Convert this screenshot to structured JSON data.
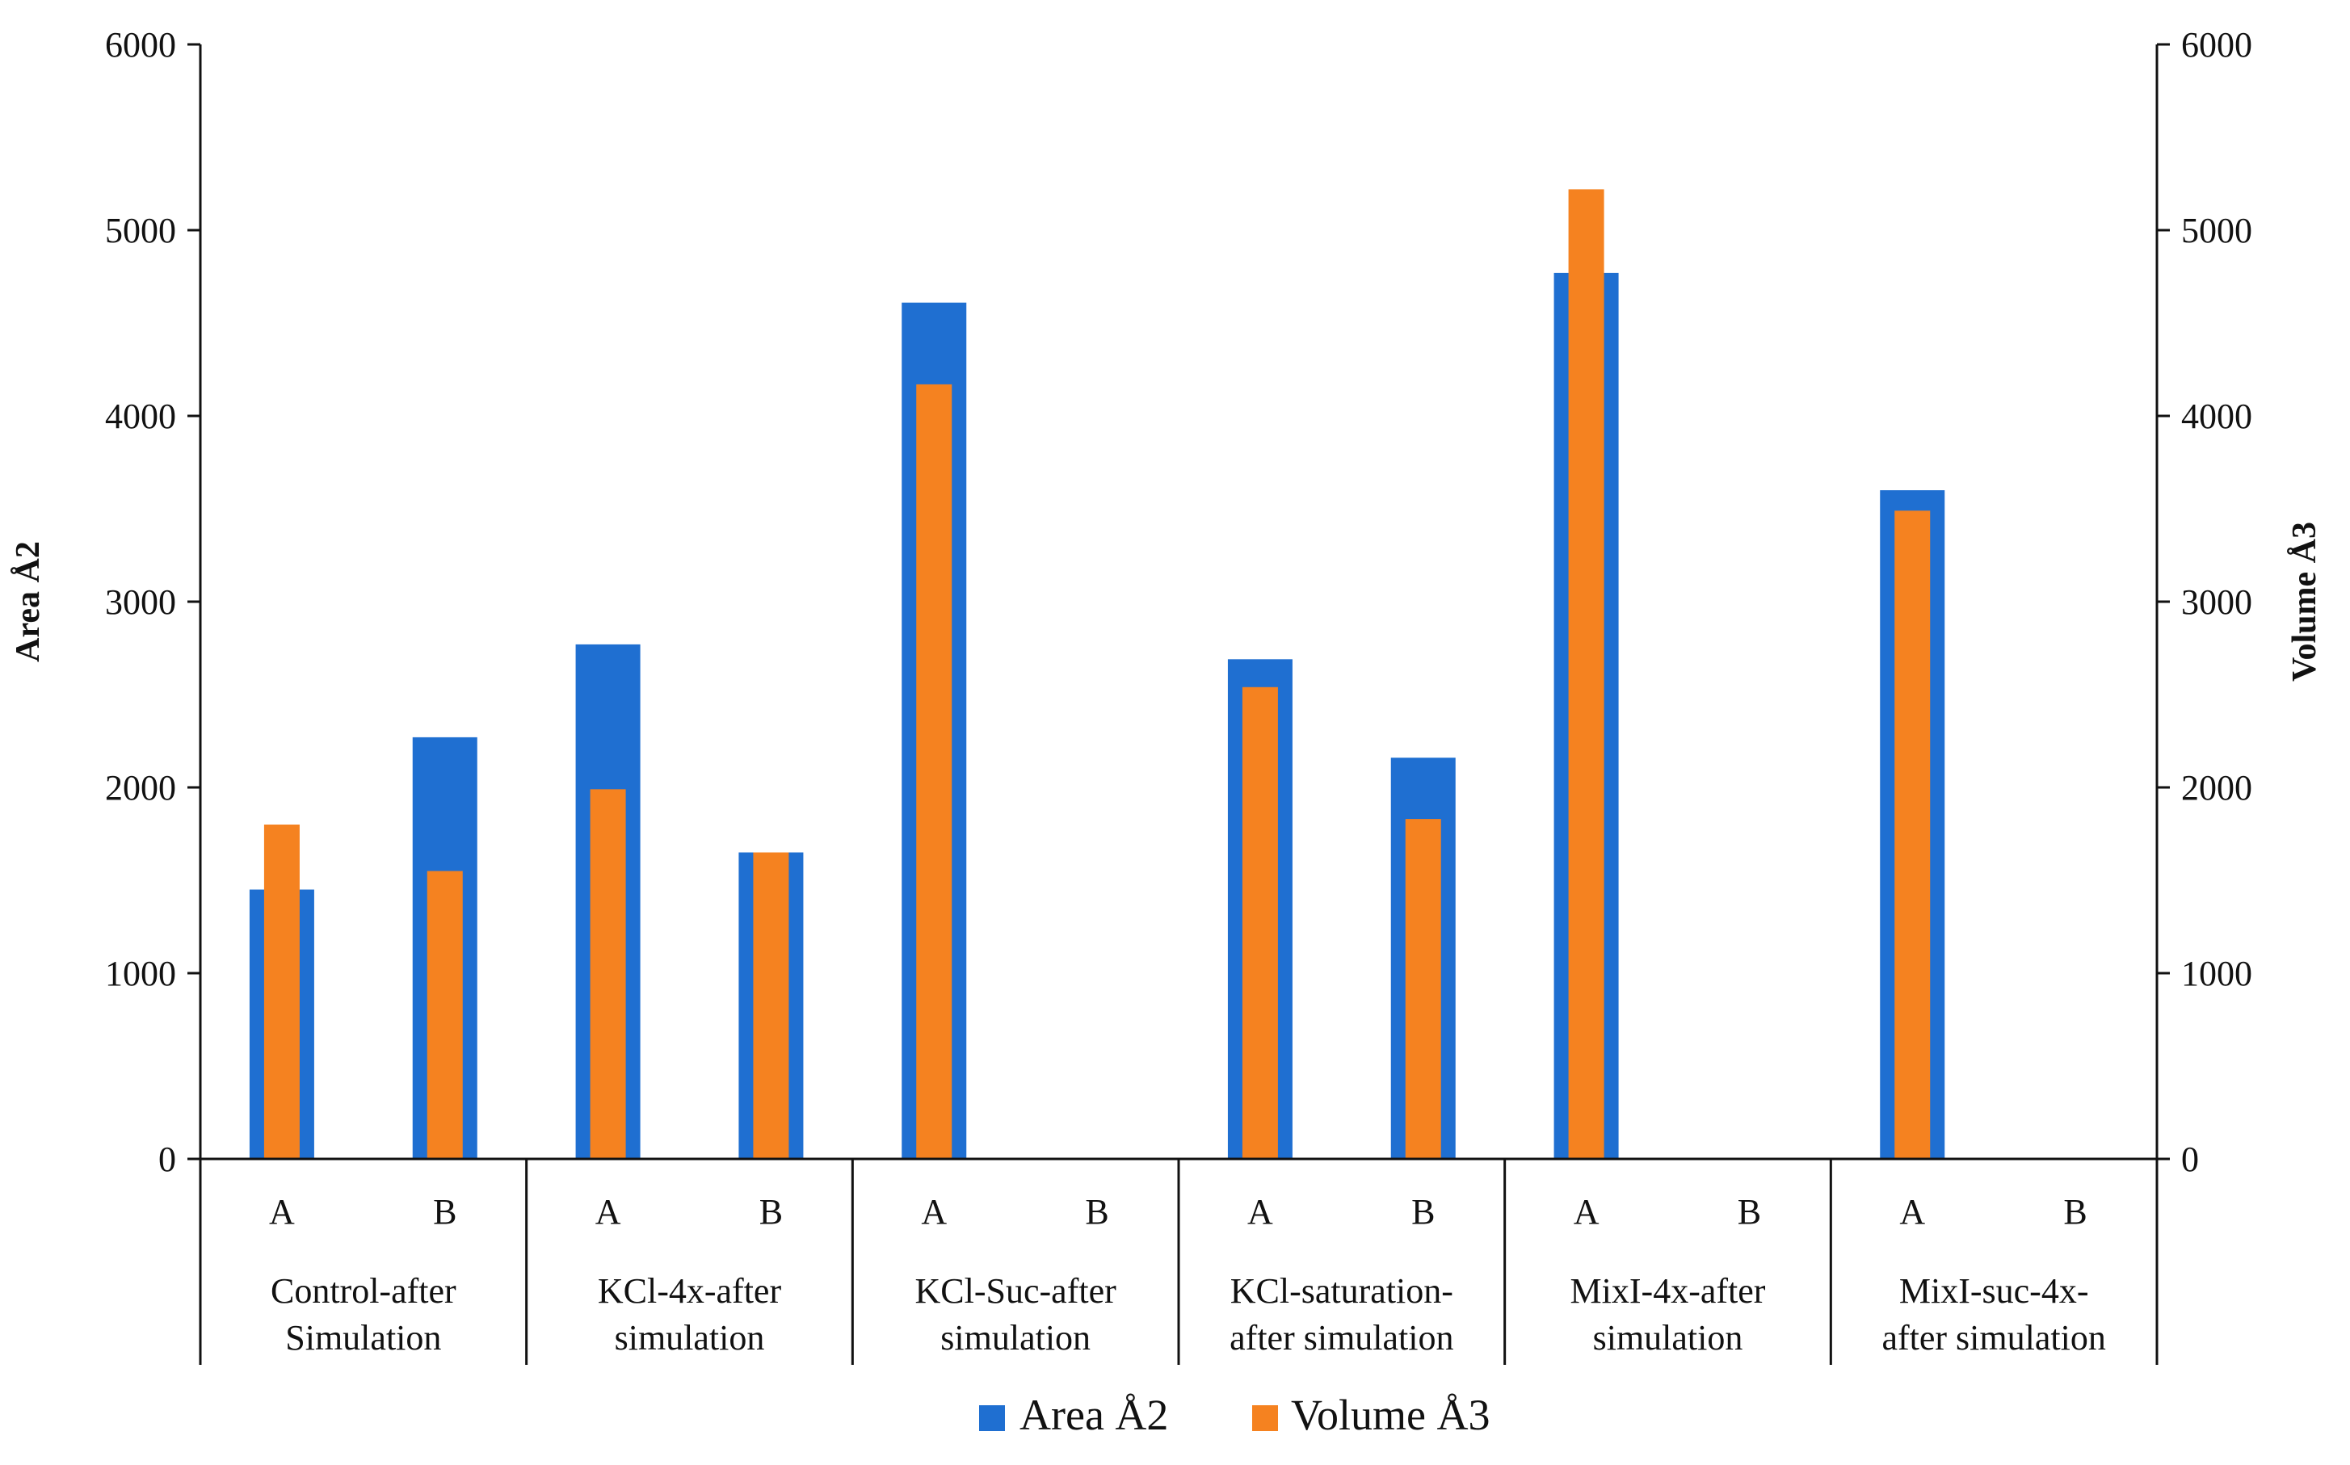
{
  "chart_data": {
    "type": "bar",
    "title": "",
    "ylabel_left": "Area Å2",
    "ylabel_right": "Volume Å3",
    "ylim_left": [
      0,
      6000
    ],
    "ylim_right": [
      0,
      6000
    ],
    "yticks": [
      0,
      1000,
      2000,
      3000,
      4000,
      5000,
      6000
    ],
    "groups": [
      {
        "label": "Control-after Simulation",
        "lines": [
          "Control-after",
          "Simulation"
        ],
        "sub": [
          "A",
          "B"
        ]
      },
      {
        "label": "KCl-4x-after simulation",
        "lines": [
          "KCl-4x-after",
          "simulation"
        ],
        "sub": [
          "A",
          "B"
        ]
      },
      {
        "label": "KCl-Suc-after simulation",
        "lines": [
          "KCl-Suc-after",
          "simulation"
        ],
        "sub": [
          "A",
          "B"
        ]
      },
      {
        "label": "KCl-saturation-after simulation",
        "lines": [
          "KCl-saturation-",
          "after simulation"
        ],
        "sub": [
          "A",
          "B"
        ]
      },
      {
        "label": "MixI-4x-after simulation",
        "lines": [
          "MixI-4x-after",
          "simulation"
        ],
        "sub": [
          "A",
          "B"
        ]
      },
      {
        "label": "MixI-suc-4x-after simulation",
        "lines": [
          "MixI-suc-4x-",
          "after simulation"
        ],
        "sub": [
          "A",
          "B"
        ]
      }
    ],
    "series": [
      {
        "name": "Area Å2",
        "axis": "left",
        "color": "#1f6fd1",
        "values": [
          1450,
          2270,
          2770,
          1650,
          4610,
          null,
          2690,
          2160,
          4770,
          null,
          3600,
          null
        ]
      },
      {
        "name": "Volume Å3",
        "axis": "right",
        "color": "#f58220",
        "values": [
          1800,
          1550,
          1990,
          1650,
          4170,
          null,
          2540,
          1830,
          5220,
          null,
          3490,
          null
        ]
      }
    ],
    "legend_position": "bottom-center",
    "grid": false
  }
}
